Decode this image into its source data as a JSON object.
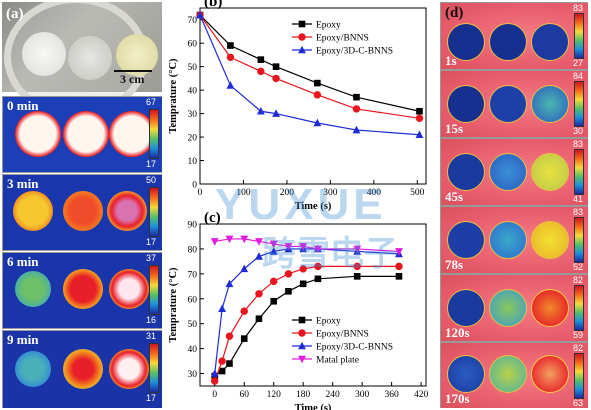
{
  "panel_a": {
    "label": "(a)",
    "scale_text": "3 cm",
    "frames": [
      {
        "time": "0 min",
        "max": "67",
        "min": "17"
      },
      {
        "time": "3 min",
        "max": "50",
        "min": "17"
      },
      {
        "time": "6 min",
        "max": "37",
        "min": "16"
      },
      {
        "time": "9 min",
        "max": "31",
        "min": "17"
      }
    ]
  },
  "panel_d": {
    "label": "(d)",
    "frames": [
      {
        "time": "1s",
        "max": "83",
        "min": "27"
      },
      {
        "time": "15s",
        "max": "84",
        "min": "30"
      },
      {
        "time": "45s",
        "max": "83",
        "min": "41"
      },
      {
        "time": "78s",
        "max": "83",
        "min": "52"
      },
      {
        "time": "120s",
        "max": "82",
        "min": "59"
      },
      {
        "time": "170s",
        "max": "82",
        "min": "63"
      }
    ]
  },
  "watermark": {
    "text1": "YUXUE",
    "text2": "跨雪电子"
  },
  "colors": {
    "epoxy": "#000000",
    "bnns": "#e8141e",
    "cbnns": "#1e2bd6",
    "plate": "#e21ae2"
  },
  "chart_data": [
    {
      "panel": "(b)",
      "type": "line",
      "xlabel": "Time (s)",
      "ylabel": "Temprature (°C)",
      "xlim": [
        0,
        520
      ],
      "ylim": [
        0,
        75
      ],
      "xticks": [
        0,
        100,
        200,
        300,
        400,
        500
      ],
      "yticks": [
        0,
        10,
        20,
        30,
        40,
        50,
        60,
        70
      ],
      "legend": "top-right",
      "series": [
        {
          "name": "Epoxy",
          "marker": "square",
          "color": "#000000",
          "x": [
            0,
            70,
            140,
            175,
            270,
            360,
            505
          ],
          "y": [
            72,
            59,
            53,
            50,
            43,
            37,
            31
          ]
        },
        {
          "name": "Epoxy/BNNS",
          "marker": "circle",
          "color": "#e8141e",
          "x": [
            0,
            70,
            140,
            175,
            270,
            360,
            505
          ],
          "y": [
            72,
            54,
            48,
            45,
            38,
            32,
            28
          ]
        },
        {
          "name": "Epoxy/3D-C-BNNS",
          "marker": "triangle",
          "color": "#1e2bd6",
          "x": [
            0,
            70,
            140,
            175,
            270,
            360,
            505
          ],
          "y": [
            72,
            42,
            31,
            30,
            26,
            23,
            21
          ]
        }
      ]
    },
    {
      "panel": "(c)",
      "type": "line",
      "xlabel": "Time (s)",
      "ylabel": "Temprature (°C)",
      "xlim": [
        -30,
        430
      ],
      "ylim": [
        25,
        90
      ],
      "xticks": [
        0,
        60,
        120,
        180,
        240,
        300,
        360,
        420
      ],
      "yticks": [
        30,
        40,
        50,
        60,
        70,
        80,
        90
      ],
      "legend": "bottom-right",
      "series": [
        {
          "name": "Epoxy",
          "marker": "square",
          "color": "#000000",
          "x": [
            0,
            15,
            30,
            60,
            90,
            120,
            150,
            180,
            210,
            290,
            375
          ],
          "y": [
            29,
            31,
            34,
            44,
            52,
            59,
            63,
            66,
            68,
            69,
            69
          ]
        },
        {
          "name": "Epoxy/BNNS",
          "marker": "circle",
          "color": "#e8141e",
          "x": [
            0,
            15,
            30,
            60,
            90,
            120,
            150,
            180,
            210,
            290,
            375
          ],
          "y": [
            27,
            35,
            45,
            55,
            62,
            67,
            70,
            72,
            73,
            73,
            73
          ]
        },
        {
          "name": "Epoxy/3D-C-BNNS",
          "marker": "triangle",
          "color": "#1e2bd6",
          "x": [
            0,
            15,
            30,
            60,
            90,
            120,
            150,
            180,
            210,
            290,
            375
          ],
          "y": [
            30,
            56,
            66,
            72,
            77,
            79,
            80,
            80,
            80,
            79,
            78
          ]
        },
        {
          "name": "Matal plate",
          "marker": "triangle-down",
          "color": "#e21ae2",
          "x": [
            0,
            30,
            60,
            90,
            120,
            150,
            180,
            210,
            290,
            375
          ],
          "y": [
            83,
            84,
            84,
            83,
            82,
            81,
            81,
            80,
            80,
            79
          ]
        }
      ]
    }
  ]
}
